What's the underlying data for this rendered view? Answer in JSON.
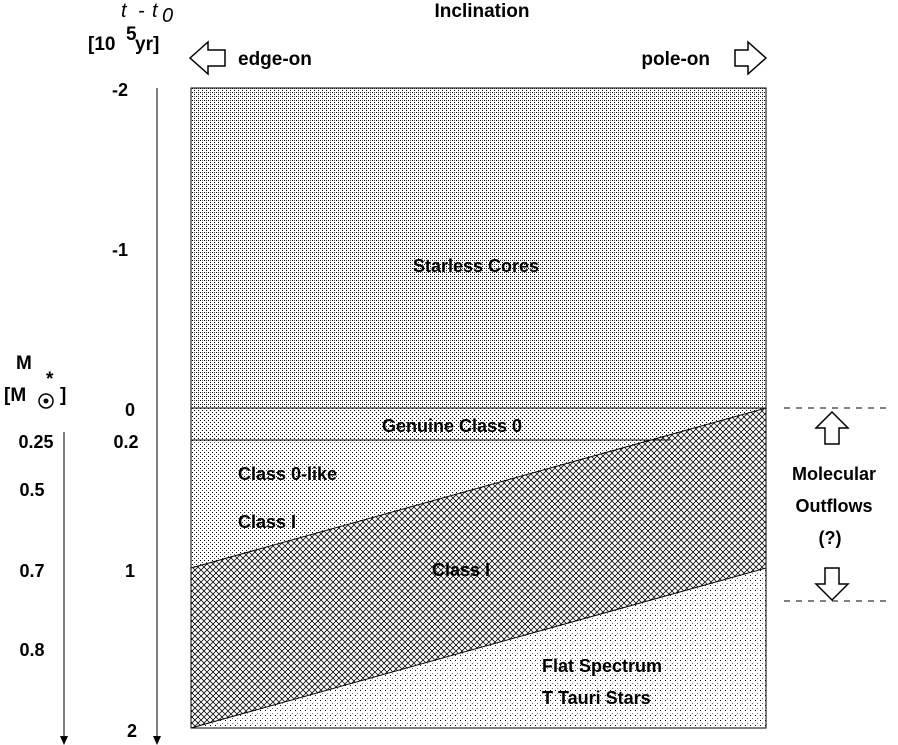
{
  "header": {
    "inclination": "Inclination",
    "edge_on": "edge-on",
    "pole_on": "pole-on"
  },
  "time_axis": {
    "label_t": "t",
    "label_minus": "-",
    "label_t0_t": "t",
    "label_t0_sub": "0",
    "unit_open": "[10",
    "unit_exp": "5",
    "unit_close": "yr]",
    "ticks": [
      "-2",
      "-1",
      "0",
      "0.2",
      "1",
      "2"
    ]
  },
  "mass_axis": {
    "label_m": "M",
    "label_star": "*",
    "unit_open": "[M",
    "unit_close": "]",
    "ticks": [
      "0.25",
      "0.5",
      "0.7",
      "0.8"
    ]
  },
  "regions": {
    "starless": "Starless   Cores",
    "genuine": "Genuine  Class  0",
    "class0like": "Class  0-like",
    "class1_left": "Class  I",
    "class1_center": "Class  I",
    "flat": "Flat  Spectrum",
    "ttauri": "T  Tauri  Stars"
  },
  "outflows": {
    "line1": "Molecular",
    "line2": "Outflows",
    "line3": "(?)"
  }
}
